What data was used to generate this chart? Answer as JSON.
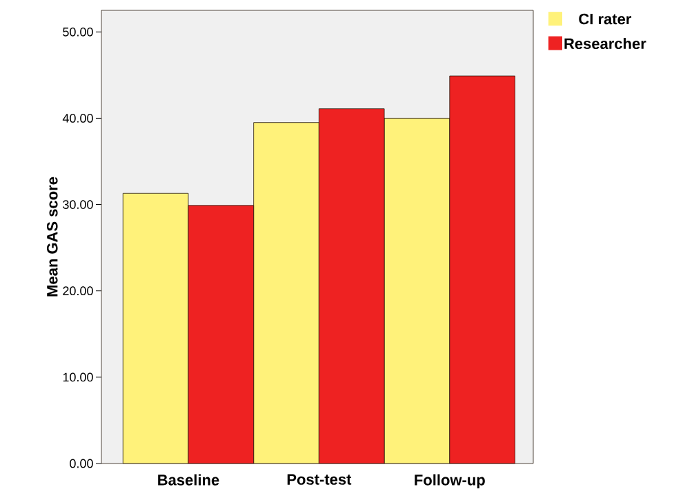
{
  "chart_data": {
    "type": "bar",
    "ylabel": "Mean GAS score",
    "categories": [
      "Baseline",
      "Post-test",
      "Follow-up"
    ],
    "series": [
      {
        "name": "CI rater",
        "color": "#fff27a",
        "values": [
          31.3,
          39.5,
          40.0
        ]
      },
      {
        "name": "Researcher",
        "color": "#ee2222",
        "values": [
          29.9,
          41.1,
          44.9
        ]
      }
    ],
    "ylim": [
      0,
      52.5
    ],
    "yticks": [
      {
        "value": 0,
        "label": "0.00"
      },
      {
        "value": 10,
        "label": "10.00"
      },
      {
        "value": 20,
        "label": "20.00"
      },
      {
        "value": 30,
        "label": "30.00"
      },
      {
        "value": 40,
        "label": "40.00"
      },
      {
        "value": 50,
        "label": "50.00"
      }
    ],
    "legend": "top right",
    "grid": false
  }
}
